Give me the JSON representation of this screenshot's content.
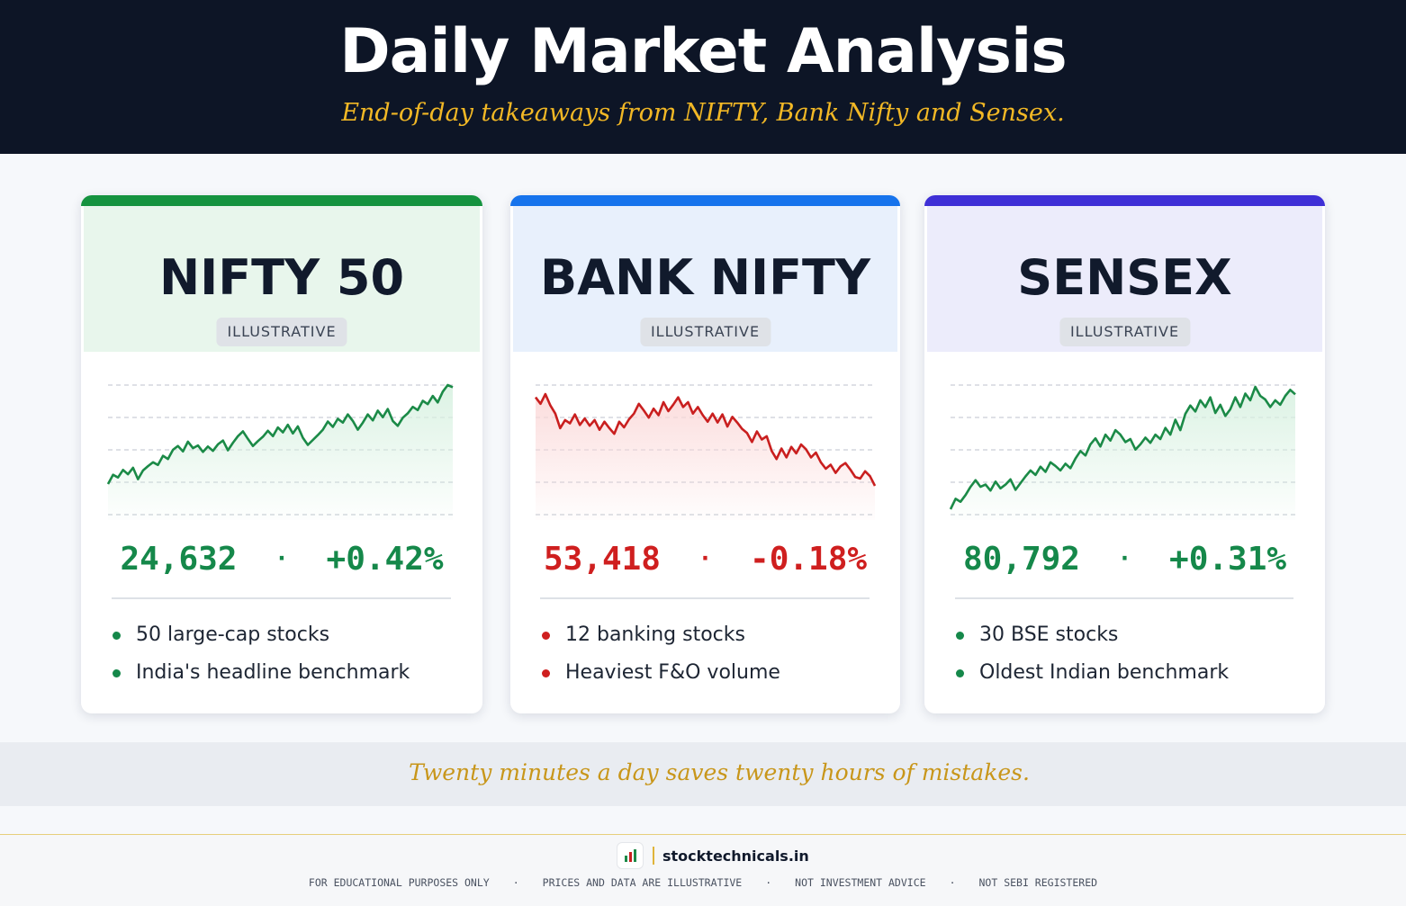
{
  "header": {
    "title": "Daily Market Analysis",
    "subtitle": "End-of-day takeaways from NIFTY, Bank Nifty and Sensex."
  },
  "cards": [
    {
      "name": "NIFTY 50",
      "badge": "ILLUSTRATIVE",
      "value": "24,632",
      "separator": "·",
      "change": "+0.42%",
      "accent": "#15933f",
      "head_bg": "#e8f6ec",
      "text_color": "#15884a",
      "bullets": [
        "50 large-cap stocks",
        "India's headline benchmark"
      ]
    },
    {
      "name": "BANK NIFTY",
      "badge": "ILLUSTRATIVE",
      "value": "53,418",
      "separator": "·",
      "change": "-0.18%",
      "accent": "#1673ec",
      "head_bg": "#e8f0fc",
      "text_color": "#cf1f1f",
      "bullets": [
        "12 banking stocks",
        "Heaviest F&O volume"
      ]
    },
    {
      "name": "SENSEX",
      "badge": "ILLUSTRATIVE",
      "value": "80,792",
      "separator": "·",
      "change": "+0.31%",
      "accent": "#3e2fd6",
      "head_bg": "#ececfb",
      "text_color": "#15884a",
      "bullets": [
        "30 BSE stocks",
        "Oldest Indian benchmark"
      ]
    }
  ],
  "chart_data": [
    {
      "type": "line",
      "series": [
        {
          "values": [
            0,
            17,
            12,
            26,
            18,
            30,
            9,
            25,
            33,
            40,
            35,
            52,
            46,
            63,
            70,
            60,
            78,
            66,
            71,
            59,
            69,
            61,
            73,
            80,
            62,
            76,
            88,
            97,
            83,
            70,
            79,
            87,
            98,
            88,
            104,
            95,
            109,
            93,
            106,
            85,
            72,
            81,
            90,
            100,
            115,
            105,
            120,
            113,
            128,
            116,
            100,
            113,
            128,
            117,
            135,
            123,
            138,
            116,
            107,
            122,
            130,
            142,
            136,
            153,
            147,
            162,
            150,
            170,
            182,
            178
          ]
        }
      ],
      "ylim": [
        0,
        182
      ],
      "color": "#1b8a47",
      "fill": "#d8f1e1",
      "grid": true
    },
    {
      "type": "line",
      "series": [
        {
          "values": [
            100,
            92,
            104,
            90,
            80,
            62,
            72,
            68,
            79,
            66,
            74,
            65,
            72,
            60,
            70,
            62,
            55,
            70,
            63,
            73,
            80,
            92,
            84,
            75,
            86,
            78,
            94,
            83,
            91,
            100,
            88,
            94,
            80,
            88,
            78,
            70,
            80,
            69,
            79,
            64,
            76,
            69,
            61,
            56,
            45,
            58,
            48,
            52,
            34,
            24,
            37,
            26,
            39,
            31,
            42,
            36,
            26,
            32,
            20,
            12,
            17,
            7,
            15,
            19,
            11,
            2,
            0,
            9,
            3,
            -9
          ]
        }
      ],
      "ylim": [
        -9,
        104
      ],
      "color": "#c91f1f",
      "fill": "#fbd9d9",
      "grid": true
    },
    {
      "type": "line",
      "series": [
        {
          "values": [
            0,
            14,
            10,
            19,
            30,
            39,
            30,
            33,
            25,
            37,
            28,
            33,
            40,
            26,
            35,
            44,
            52,
            46,
            57,
            50,
            63,
            58,
            52,
            61,
            55,
            68,
            78,
            72,
            87,
            95,
            84,
            100,
            92,
            106,
            100,
            90,
            94,
            80,
            87,
            96,
            89,
            100,
            94,
            109,
            100,
            120,
            106,
            128,
            139,
            131,
            146,
            137,
            150,
            129,
            140,
            125,
            134,
            150,
            137,
            155,
            146,
            164,
            152,
            147,
            137,
            146,
            140,
            152,
            160,
            154
          ]
        }
      ],
      "ylim": [
        0,
        164
      ],
      "color": "#1b8a47",
      "fill": "#d8f1e1",
      "grid": true
    }
  ],
  "quote": "Twenty minutes a day saves twenty hours of mistakes.",
  "footer": {
    "logo_icon": "candlestick-logo-icon",
    "site": "stocktechnicals.in",
    "disclaimers": [
      "FOR EDUCATIONAL PURPOSES ONLY",
      "PRICES AND DATA ARE ILLUSTRATIVE",
      "NOT INVESTMENT ADVICE",
      "NOT SEBI REGISTERED"
    ],
    "bullet": "·"
  }
}
